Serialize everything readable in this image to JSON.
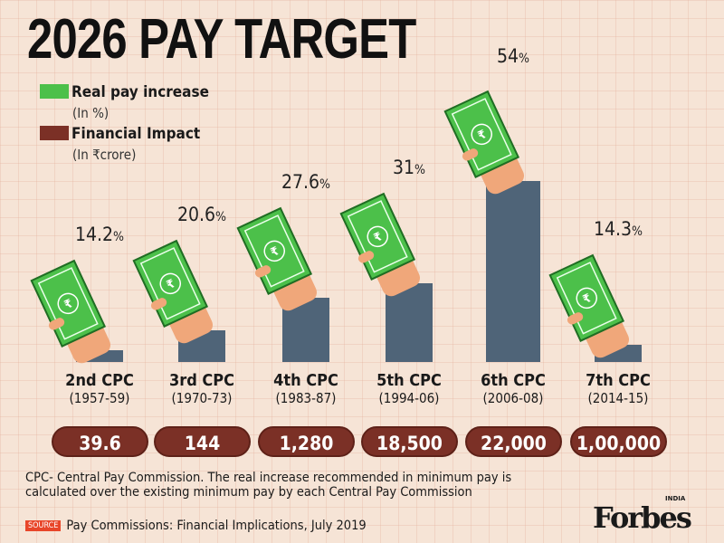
{
  "title": "2026 PAY TARGET",
  "legend": [
    {
      "label": "Real pay increase",
      "unit": "(In %)",
      "color": "#4cc04a"
    },
    {
      "label": "Financial Impact",
      "unit": "(In ₹crore)",
      "color": "#7b3026"
    }
  ],
  "chart_data": {
    "type": "bar",
    "categories": [
      "2nd CPC",
      "3rd CPC",
      "4th CPC",
      "5th CPC",
      "6th CPC",
      "7th CPC"
    ],
    "periods": [
      "(1957-59)",
      "(1970-73)",
      "(1983-87)",
      "(1994-06)",
      "(2006-08)",
      "(2014-15)"
    ],
    "series": [
      {
        "name": "Real pay increase",
        "unit": "%",
        "values": [
          14.2,
          20.6,
          27.6,
          31,
          54,
          14.3
        ],
        "labels": [
          "14.2",
          "20.6",
          "27.6",
          "31",
          "54",
          "14.3"
        ]
      },
      {
        "name": "Financial Impact",
        "unit": "₹ crore",
        "values": [
          39.6,
          144,
          1280,
          18500,
          22000,
          100000
        ],
        "labels": [
          "39.6",
          "144",
          "1,280",
          "18,500",
          "22,000",
          "1,00,000"
        ]
      }
    ],
    "bar_color": "#4f6478"
  },
  "footnote": "CPC- Central Pay Commission. The real increase recommended in minimum pay is calculated over the existing minimum pay by each Central Pay Commission",
  "source_tag": "SOURCE",
  "source": "Pay Commissions: Financial Implications, July 2019",
  "logo": "Forbes",
  "logo_sub": "INDIA"
}
